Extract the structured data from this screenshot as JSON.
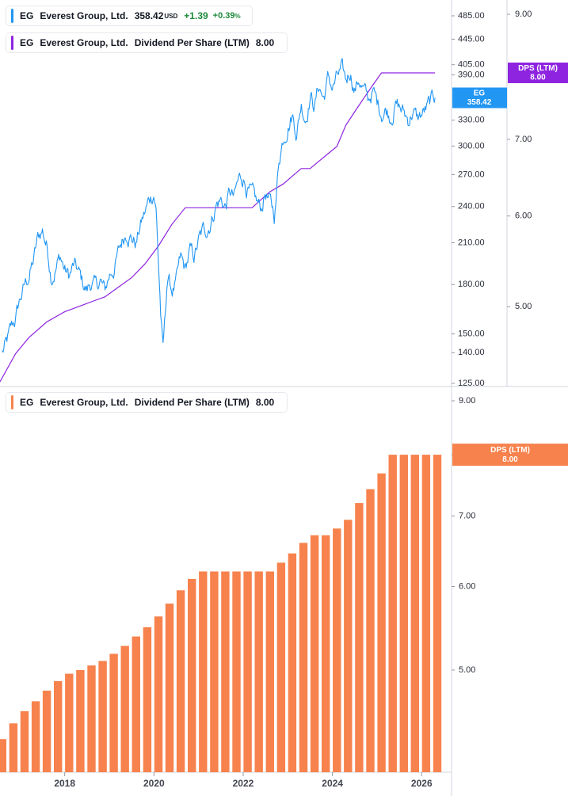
{
  "legends": {
    "price": {
      "symbol": "EG",
      "name": "Everest Group, Ltd.",
      "last": "358.42",
      "currency": "USD",
      "change": "+1.39",
      "change_pct": "+0.39",
      "pct_sign": "%",
      "color": "#2196f3"
    },
    "dps_top": {
      "symbol": "EG",
      "name": "Everest Group, Ltd.",
      "metric": "Dividend Per Share (LTM)",
      "value": "8.00",
      "color": "#8e24e0"
    },
    "dps_bottom": {
      "symbol": "EG",
      "name": "Everest Group, Ltd.",
      "metric": "Dividend Per Share (LTM)",
      "value": "8.00",
      "color": "#f7824d"
    }
  },
  "chart_data": [
    {
      "type": "line",
      "title": "",
      "series": [
        {
          "name": "EG",
          "color": "#2196f3",
          "last": 358.42,
          "x": [
            2016.6,
            2016.7,
            2016.8,
            2016.9,
            2017.0,
            2017.1,
            2017.2,
            2017.3,
            2017.4,
            2017.5,
            2017.6,
            2017.7,
            2017.8,
            2017.9,
            2018.0,
            2018.1,
            2018.2,
            2018.3,
            2018.4,
            2018.5,
            2018.6,
            2018.7,
            2018.8,
            2018.9,
            2019.0,
            2019.1,
            2019.2,
            2019.3,
            2019.4,
            2019.5,
            2019.6,
            2019.7,
            2019.8,
            2019.9,
            2020.0,
            2020.05,
            2020.1,
            2020.15,
            2020.2,
            2020.25,
            2020.3,
            2020.4,
            2020.5,
            2020.6,
            2020.7,
            2020.8,
            2020.9,
            2021.0,
            2021.1,
            2021.2,
            2021.3,
            2021.4,
            2021.5,
            2021.6,
            2021.7,
            2021.8,
            2021.9,
            2022.0,
            2022.1,
            2022.2,
            2022.3,
            2022.4,
            2022.5,
            2022.6,
            2022.7,
            2022.75,
            2022.8,
            2022.9,
            2023.0,
            2023.1,
            2023.2,
            2023.3,
            2023.4,
            2023.5,
            2023.6,
            2023.7,
            2023.8,
            2023.9,
            2024.0,
            2024.1,
            2024.2,
            2024.3,
            2024.4,
            2024.5,
            2024.6,
            2024.7,
            2024.8,
            2024.9,
            2025.0,
            2025.1,
            2025.2,
            2025.3,
            2025.4,
            2025.5,
            2025.6,
            2025.7,
            2025.8,
            2025.9,
            2026.0,
            2026.1,
            2026.2,
            2026.3
          ],
          "y": [
            140,
            144,
            151,
            158,
            170,
            178,
            186,
            196,
            212,
            220,
            208,
            188,
            193,
            200,
            190,
            185,
            192,
            187,
            180,
            176,
            182,
            177,
            182,
            174,
            186,
            192,
            201,
            212,
            222,
            216,
            210,
            224,
            234,
            245,
            255,
            238,
            196,
            163,
            140,
            157,
            185,
            176,
            180,
            195,
            188,
            202,
            198,
            210,
            217,
            222,
            232,
            244,
            246,
            240,
            252,
            246,
            262,
            268,
            258,
            247,
            240,
            236,
            254,
            242,
            232,
            252,
            286,
            312,
            330,
            340,
            318,
            352,
            336,
            366,
            350,
            376,
            358,
            384,
            372,
            384,
            392,
            376,
            398,
            372,
            386,
            368,
            352,
            368,
            350,
            342,
            346,
            338,
            352,
            346,
            338,
            330,
            344,
            330,
            336,
            342,
            348,
            358
          ]
        },
        {
          "name": "DPS (LTM)",
          "color": "#8e24e0",
          "x": [
            2016.55,
            2016.9,
            2017.2,
            2017.6,
            2018.0,
            2018.3,
            2018.6,
            2018.9,
            2019.2,
            2019.5,
            2019.8,
            2020.1,
            2020.4,
            2020.7,
            2021.0,
            2021.3,
            2021.6,
            2021.9,
            2022.2,
            2022.4,
            2022.6,
            2022.9,
            2023.1,
            2023.3,
            2023.5,
            2023.7,
            2023.9,
            2024.1,
            2024.3,
            2024.5,
            2024.7,
            2024.9,
            2025.1,
            2025.3,
            2025.6,
            2025.9,
            2026.2,
            2026.3
          ],
          "y": [
            4.3,
            4.55,
            4.7,
            4.85,
            4.95,
            5.0,
            5.05,
            5.1,
            5.2,
            5.3,
            5.45,
            5.65,
            5.9,
            6.1,
            6.1,
            6.1,
            6.1,
            6.1,
            6.1,
            6.2,
            6.3,
            6.4,
            6.5,
            6.6,
            6.6,
            6.7,
            6.8,
            6.9,
            7.2,
            7.4,
            7.6,
            7.8,
            8.0,
            8.0,
            8.0,
            8.0,
            8.0,
            8.0
          ]
        }
      ],
      "y_left": {
        "ticks": [
          125,
          140,
          150,
          180,
          210,
          240,
          270,
          300,
          330,
          390,
          405,
          445,
          485
        ],
        "ylim": [
          125,
          485
        ]
      },
      "y_right": {
        "ticks": [
          5.0,
          6.0,
          7.0,
          9.0
        ],
        "ylim": [
          4.3,
          9.0
        ]
      },
      "labels": {
        "price": {
          "sym": "EG",
          "val": "358.42"
        },
        "dps": {
          "sym": "DPS (LTM)",
          "val": "8.00"
        }
      },
      "grid": false
    },
    {
      "type": "bar",
      "title": "",
      "series": [
        {
          "name": "DPS (LTM)",
          "color": "#f7824d",
          "x": [
            2016.6,
            2016.85,
            2017.1,
            2017.35,
            2017.6,
            2017.85,
            2018.1,
            2018.35,
            2018.6,
            2018.85,
            2019.1,
            2019.35,
            2019.6,
            2019.85,
            2020.1,
            2020.35,
            2020.6,
            2020.85,
            2021.1,
            2021.35,
            2021.6,
            2021.85,
            2022.1,
            2022.35,
            2022.6,
            2022.85,
            2023.1,
            2023.35,
            2023.6,
            2023.85,
            2024.1,
            2024.35,
            2024.6,
            2024.85,
            2025.1,
            2025.35,
            2025.6,
            2025.85,
            2026.1,
            2026.35
          ],
          "values": [
            4.3,
            4.45,
            4.57,
            4.67,
            4.78,
            4.88,
            4.96,
            5.0,
            5.05,
            5.1,
            5.18,
            5.27,
            5.38,
            5.49,
            5.62,
            5.78,
            5.95,
            6.1,
            6.2,
            6.2,
            6.2,
            6.2,
            6.2,
            6.2,
            6.2,
            6.32,
            6.45,
            6.6,
            6.71,
            6.71,
            6.81,
            6.94,
            7.2,
            7.42,
            7.68,
            8.0,
            8.0,
            8.0,
            8.0,
            8.0
          ]
        }
      ],
      "x_ticks": [
        "2018",
        "2020",
        "2022",
        "2024",
        "2026"
      ],
      "x_tick_values": [
        2018,
        2020,
        2022,
        2024,
        2026
      ],
      "y_right": {
        "ticks": [
          5.0,
          6.0,
          7.0,
          8.0,
          9.0
        ],
        "ylim": [
          4.0,
          9.0
        ]
      },
      "labels": {
        "dps": {
          "sym": "DPS (LTM)",
          "val": "8.00"
        }
      },
      "grid": false
    }
  ]
}
